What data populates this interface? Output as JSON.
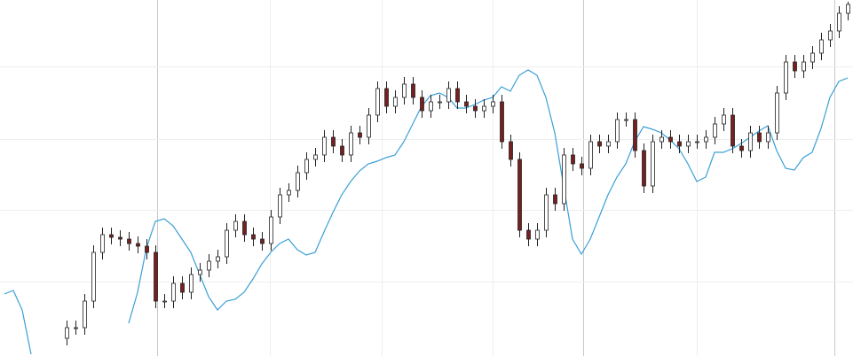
{
  "chart_data": {
    "type": "candlestick",
    "ylim": [
      0,
      402
    ],
    "yticks": [
      84,
      165,
      245,
      327
    ],
    "grid": true,
    "up_color": "#ffffff",
    "down_color": "#7a1f1f",
    "open": [
      20,
      32,
      32,
      62,
      117,
      137,
      134,
      132,
      127,
      124,
      117,
      62,
      62,
      82,
      72,
      92,
      97,
      107,
      112,
      142,
      152,
      137,
      132,
      127,
      157,
      182,
      187,
      207,
      222,
      227,
      247,
      237,
      227,
      252,
      247,
      272,
      302,
      282,
      292,
      307,
      292,
      277,
      287,
      287,
      302,
      287,
      282,
      277,
      282,
      287,
      242,
      222,
      142,
      132,
      142,
      182,
      172,
      227,
      217,
      212,
      242,
      237,
      242,
      267,
      267,
      232,
      192,
      242,
      247,
      242,
      237,
      242,
      242,
      247,
      262,
      272,
      237,
      232,
      252,
      242,
      252,
      297,
      332,
      322,
      332,
      342,
      357,
      367,
      387
    ],
    "high": [
      40,
      40,
      70,
      125,
      145,
      145,
      142,
      140,
      135,
      132,
      125,
      70,
      90,
      90,
      100,
      105,
      115,
      120,
      150,
      160,
      160,
      145,
      140,
      165,
      190,
      195,
      215,
      230,
      235,
      255,
      255,
      245,
      260,
      260,
      280,
      310,
      310,
      300,
      315,
      315,
      300,
      295,
      295,
      310,
      310,
      295,
      290,
      290,
      295,
      295,
      250,
      230,
      150,
      150,
      190,
      190,
      235,
      235,
      225,
      250,
      250,
      250,
      275,
      275,
      275,
      240,
      250,
      255,
      255,
      250,
      250,
      250,
      255,
      270,
      280,
      280,
      245,
      260,
      260,
      260,
      305,
      340,
      340,
      340,
      350,
      365,
      375,
      395,
      400
    ],
    "low": [
      12,
      24,
      24,
      54,
      109,
      126,
      124,
      119,
      116,
      109,
      54,
      54,
      54,
      64,
      64,
      84,
      89,
      99,
      104,
      134,
      129,
      124,
      119,
      119,
      149,
      174,
      179,
      199,
      214,
      219,
      229,
      219,
      219,
      239,
      239,
      264,
      274,
      274,
      284,
      284,
      269,
      269,
      279,
      279,
      279,
      274,
      269,
      269,
      274,
      234,
      214,
      134,
      124,
      124,
      134,
      164,
      164,
      209,
      204,
      204,
      229,
      229,
      234,
      259,
      224,
      184,
      184,
      234,
      234,
      229,
      229,
      234,
      234,
      239,
      254,
      229,
      224,
      224,
      234,
      234,
      244,
      289,
      314,
      314,
      324,
      334,
      349,
      359,
      379
    ],
    "close": [
      32,
      32,
      62,
      117,
      137,
      134,
      132,
      127,
      124,
      117,
      62,
      62,
      82,
      72,
      92,
      97,
      107,
      112,
      142,
      152,
      137,
      132,
      127,
      157,
      182,
      187,
      207,
      222,
      227,
      247,
      237,
      227,
      252,
      247,
      272,
      302,
      282,
      292,
      307,
      292,
      277,
      287,
      287,
      302,
      287,
      282,
      277,
      282,
      287,
      242,
      222,
      142,
      132,
      142,
      182,
      172,
      227,
      217,
      212,
      242,
      237,
      242,
      267,
      267,
      232,
      192,
      242,
      247,
      242,
      237,
      242,
      242,
      247,
      262,
      272,
      237,
      232,
      252,
      242,
      252,
      297,
      332,
      322,
      332,
      342,
      357,
      367,
      387,
      397
    ],
    "line": {
      "color": "#3a9fd6",
      "values": [
        70,
        74,
        52,
        2,
        null,
        null,
        null,
        null,
        null,
        null,
        null,
        null,
        null,
        null,
        37,
        72,
        122,
        152,
        155,
        147,
        132,
        117,
        92,
        67,
        52,
        62,
        64,
        72,
        87,
        104,
        117,
        127,
        132,
        120,
        114,
        117,
        140,
        162,
        182,
        197,
        209,
        217,
        220,
        224,
        227,
        242,
        262,
        282,
        294,
        297,
        292,
        280,
        280,
        284,
        289,
        292,
        304,
        299,
        317,
        323,
        317,
        292,
        252,
        192,
        132,
        115,
        132,
        157,
        182,
        202,
        217,
        242,
        259,
        256,
        252,
        244,
        234,
        217,
        197,
        202,
        230,
        230,
        234,
        240,
        247,
        254,
        260,
        232,
        212,
        210,
        224,
        230,
        257,
        292,
        310,
        314
      ]
    }
  }
}
